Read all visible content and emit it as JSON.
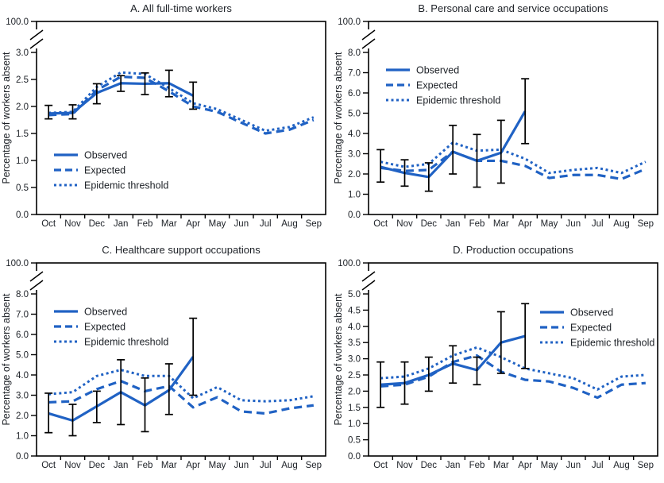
{
  "colors": {
    "line_blue": "#2062c4",
    "error_bar": "#000000",
    "axis": "#000000",
    "text": "#1c2026",
    "background": "#ffffff"
  },
  "chart_data": [
    {
      "type": "line",
      "id": "a",
      "title": "A. All full-time workers",
      "ylabel": "Percentage of workers absent",
      "categories": [
        "Oct",
        "Nov",
        "Dec",
        "Jan",
        "Feb",
        "Mar",
        "Apr",
        "May",
        "Jun",
        "Jul",
        "Aug",
        "Sep"
      ],
      "y_axis": {
        "linear_max": 3.0,
        "tick_step": 0.5,
        "top_tick_label": "100.0",
        "axis_break": true,
        "tick_labels": [
          "0.0",
          "0.5",
          "1.0",
          "1.5",
          "2.0",
          "2.5",
          "3.0",
          "100.0"
        ]
      },
      "legend": {
        "position": "lower-left",
        "items": [
          "Observed",
          "Expected",
          "Epidemic threshold"
        ]
      },
      "series": [
        {
          "name": "Observed",
          "style": "solid",
          "months": "Oct-Apr",
          "values": [
            1.87,
            1.88,
            2.25,
            2.43,
            2.42,
            2.43,
            2.2
          ]
        },
        {
          "name": "Expected",
          "style": "dashed",
          "values": [
            1.84,
            1.86,
            2.3,
            2.55,
            2.53,
            2.28,
            2.0,
            1.9,
            1.7,
            1.5,
            1.57,
            1.75
          ]
        },
        {
          "name": "Epidemic threshold",
          "style": "dotted",
          "values": [
            1.88,
            1.9,
            2.36,
            2.63,
            2.6,
            2.34,
            2.06,
            1.95,
            1.75,
            1.55,
            1.62,
            1.8
          ]
        }
      ],
      "error_bars": {
        "applies_to": "Observed",
        "low": [
          1.77,
          1.77,
          2.05,
          2.28,
          2.22,
          2.18,
          1.95
        ],
        "high": [
          2.02,
          2.03,
          2.42,
          2.57,
          2.62,
          2.67,
          2.45
        ]
      }
    },
    {
      "type": "line",
      "id": "b",
      "title": "B. Personal care and service occupations",
      "ylabel": "Percentage of workers absent",
      "categories": [
        "Oct",
        "Nov",
        "Dec",
        "Jan",
        "Feb",
        "Mar",
        "Apr",
        "May",
        "Jun",
        "Jul",
        "Aug",
        "Sep"
      ],
      "y_axis": {
        "linear_max": 8.0,
        "tick_step": 1.0,
        "top_tick_label": "100.0",
        "axis_break": true,
        "tick_labels": [
          "0.0",
          "1.0",
          "2.0",
          "3.0",
          "4.0",
          "5.0",
          "6.0",
          "7.0",
          "8.0",
          "100.0"
        ]
      },
      "legend": {
        "position": "upper-left",
        "items": [
          "Observed",
          "Expected",
          "Epidemic threshold"
        ]
      },
      "series": [
        {
          "name": "Observed",
          "style": "solid",
          "months": "Oct-Apr",
          "values": [
            2.35,
            2.05,
            1.85,
            3.1,
            2.65,
            3.05,
            5.1
          ]
        },
        {
          "name": "Expected",
          "style": "dashed",
          "values": [
            2.3,
            2.15,
            2.2,
            3.1,
            2.65,
            2.65,
            2.4,
            1.8,
            1.95,
            1.95,
            1.75,
            2.25
          ]
        },
        {
          "name": "Epidemic threshold",
          "style": "dotted",
          "values": [
            2.6,
            2.35,
            2.5,
            3.55,
            3.15,
            3.2,
            2.75,
            2.05,
            2.2,
            2.3,
            2.05,
            2.6
          ]
        }
      ],
      "error_bars": {
        "applies_to": "Observed",
        "low": [
          1.6,
          1.4,
          1.15,
          2.0,
          1.35,
          1.55,
          3.5
        ],
        "high": [
          3.2,
          2.7,
          2.55,
          4.4,
          3.95,
          4.65,
          6.7
        ]
      }
    },
    {
      "type": "line",
      "id": "c",
      "title": "C. Healthcare support occupations",
      "ylabel": "Percentage of workers absent",
      "categories": [
        "Oct",
        "Nov",
        "Dec",
        "Jan",
        "Feb",
        "Mar",
        "Apr",
        "May",
        "Jun",
        "Jul",
        "Aug",
        "Sep"
      ],
      "y_axis": {
        "linear_max": 8.0,
        "tick_step": 1.0,
        "top_tick_label": "100.0",
        "axis_break": true,
        "tick_labels": [
          "0.0",
          "1.0",
          "2.0",
          "3.0",
          "4.0",
          "5.0",
          "6.0",
          "7.0",
          "8.0",
          "100.0"
        ]
      },
      "legend": {
        "position": "upper-left",
        "items": [
          "Observed",
          "Expected",
          "Epidemic threshold"
        ]
      },
      "series": [
        {
          "name": "Observed",
          "style": "solid",
          "months": "Oct-Apr",
          "values": [
            2.1,
            1.75,
            2.45,
            3.15,
            2.5,
            3.25,
            4.9
          ]
        },
        {
          "name": "Expected",
          "style": "dashed",
          "values": [
            2.65,
            2.7,
            3.3,
            3.7,
            3.2,
            3.45,
            2.4,
            2.9,
            2.2,
            2.1,
            2.35,
            2.5
          ]
        },
        {
          "name": "Epidemic threshold",
          "style": "dotted",
          "values": [
            3.05,
            3.15,
            3.95,
            4.25,
            3.95,
            3.95,
            2.85,
            3.4,
            2.75,
            2.7,
            2.75,
            2.95
          ]
        }
      ],
      "error_bars": {
        "applies_to": "Observed",
        "low": [
          1.15,
          1.0,
          1.65,
          1.55,
          1.2,
          2.05,
          3.0
        ],
        "high": [
          3.1,
          2.55,
          3.2,
          4.75,
          3.85,
          4.55,
          6.8
        ]
      }
    },
    {
      "type": "line",
      "id": "d",
      "title": "D. Production occupations",
      "ylabel": "Percentage of workers absent",
      "categories": [
        "Oct",
        "Nov",
        "Dec",
        "Jan",
        "Feb",
        "Mar",
        "Apr",
        "May",
        "Jun",
        "Jul",
        "Aug",
        "Sep"
      ],
      "y_axis": {
        "linear_max": 5.0,
        "tick_step": 0.5,
        "top_tick_label": "100.0",
        "axis_break": true,
        "tick_labels": [
          "0.0",
          "0.5",
          "1.0",
          "1.5",
          "2.0",
          "2.5",
          "3.0",
          "3.5",
          "4.0",
          "4.5",
          "5.0",
          "100.0"
        ]
      },
      "legend": {
        "position": "upper-right",
        "items": [
          "Observed",
          "Expected",
          "Epidemic threshold"
        ]
      },
      "series": [
        {
          "name": "Observed",
          "style": "solid",
          "months": "Oct-Apr",
          "values": [
            2.2,
            2.25,
            2.5,
            2.85,
            2.65,
            3.5,
            3.7
          ]
        },
        {
          "name": "Expected",
          "style": "dashed",
          "values": [
            2.15,
            2.2,
            2.45,
            2.9,
            3.1,
            2.6,
            2.35,
            2.3,
            2.1,
            1.8,
            2.2,
            2.25
          ]
        },
        {
          "name": "Epidemic threshold",
          "style": "dotted",
          "values": [
            2.4,
            2.45,
            2.7,
            3.1,
            3.35,
            3.05,
            2.7,
            2.55,
            2.4,
            2.05,
            2.45,
            2.5
          ]
        }
      ],
      "error_bars": {
        "applies_to": "Observed",
        "low": [
          1.5,
          1.6,
          2.0,
          2.25,
          2.2,
          2.55,
          2.7
        ],
        "high": [
          2.9,
          2.9,
          3.05,
          3.4,
          3.05,
          4.45,
          4.7
        ]
      }
    }
  ]
}
